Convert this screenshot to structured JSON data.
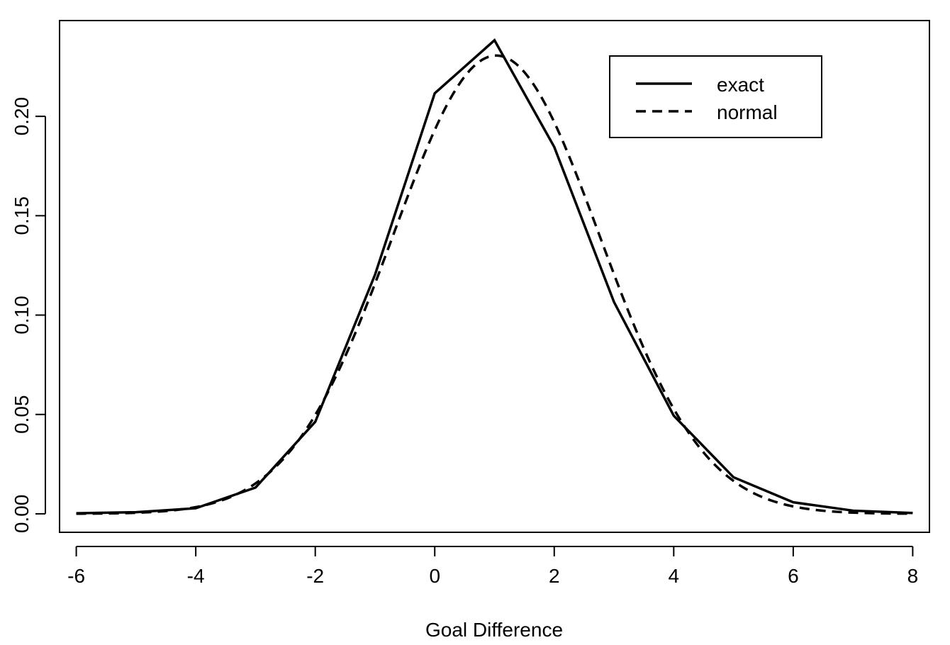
{
  "chart_data": {
    "type": "line",
    "title": "",
    "xlabel": "Goal Difference",
    "ylabel": "",
    "xlim": [
      -6.28,
      8.28
    ],
    "ylim": [
      -0.0093,
      0.2482
    ],
    "x_ticks": [
      -6,
      -4,
      -2,
      0,
      2,
      4,
      6,
      8
    ],
    "x_tick_labels": [
      "-6",
      "-4",
      "-2",
      "0",
      "2",
      "4",
      "6",
      "8"
    ],
    "y_ticks": [
      0.0,
      0.05,
      0.1,
      0.15,
      0.2
    ],
    "y_tick_labels": [
      "0.00",
      "0.05",
      "0.10",
      "0.15",
      "0.20"
    ],
    "grid": false,
    "legend_position": "top-right",
    "series": [
      {
        "name": "exact",
        "style": "solid",
        "color": "#000000",
        "x": [
          -6,
          -5,
          -4,
          -3,
          -2,
          -1,
          0,
          1,
          2,
          3,
          4,
          5,
          6,
          7,
          8
        ],
        "y": [
          0.0003,
          0.0008,
          0.0028,
          0.0132,
          0.0463,
          0.1203,
          0.2116,
          0.2383,
          0.1846,
          0.1066,
          0.0494,
          0.0184,
          0.0058,
          0.0016,
          0.0004
        ]
      },
      {
        "name": "normal",
        "style": "dashed",
        "color": "#000000",
        "mean": 1.03,
        "sd": 1.73
      }
    ]
  }
}
